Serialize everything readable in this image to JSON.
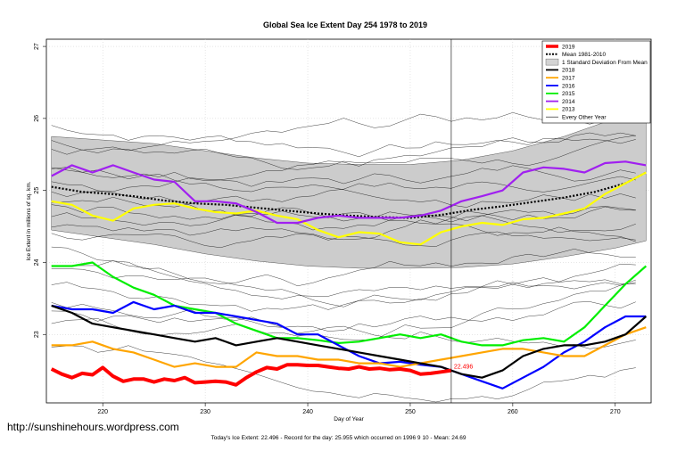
{
  "url_text": "http://sunshinehours.wordpress.com",
  "footer_text": "Today's Ice Extent: 22.496  - Record for the day: 25.955 which occurred on 1996 9 10  - Mean: 24.69",
  "chart_data": {
    "type": "line",
    "title": "Global Sea Ice Extent Day 254 1978 to 2019",
    "xlabel": "Day of Year",
    "ylabel": "Ice Extent in millions of sq. km.",
    "xlim": [
      214.5,
      273.5
    ],
    "ylim": [
      22.05,
      27.1
    ],
    "x_ticks": [
      220,
      230,
      240,
      250,
      260,
      270
    ],
    "y_ticks": [
      23,
      24,
      25,
      26,
      27
    ],
    "current_day": 254,
    "current_value_label": "22.496",
    "legend_position": "top-right",
    "legend": [
      {
        "label": "2019",
        "color": "#ff0000",
        "style": "thick"
      },
      {
        "label": "Mean 1981-2010",
        "color": "#000000",
        "style": "dotted"
      },
      {
        "label": "1 Standard Deviation From Mean",
        "color": "#d3d3d3",
        "style": "box"
      },
      {
        "label": "2018",
        "color": "#000000",
        "style": "solid"
      },
      {
        "label": "2017",
        "color": "#ffa500",
        "style": "solid"
      },
      {
        "label": "2016",
        "color": "#0000ff",
        "style": "solid"
      },
      {
        "label": "2015",
        "color": "#00ee00",
        "style": "solid"
      },
      {
        "label": "2014",
        "color": "#a020f0",
        "style": "solid"
      },
      {
        "label": "2013",
        "color": "#ffff00",
        "style": "solid"
      },
      {
        "label": "Every Other Year",
        "color": "#000000",
        "style": "thin"
      }
    ],
    "band": {
      "x": [
        215,
        220,
        225,
        230,
        235,
        240,
        245,
        250,
        255,
        260,
        265,
        270,
        273
      ],
      "upper": [
        25.75,
        25.7,
        25.65,
        25.55,
        25.45,
        25.38,
        25.36,
        25.36,
        25.42,
        25.55,
        25.75,
        26.0,
        26.2
      ],
      "lower": [
        24.45,
        24.35,
        24.25,
        24.12,
        24.02,
        23.95,
        23.92,
        23.92,
        23.93,
        23.98,
        24.08,
        24.2,
        24.3
      ]
    },
    "series": [
      {
        "name": "Mean 1981-2010",
        "color": "#000000",
        "width": 2.2,
        "dash": "2,2",
        "x": [
          215,
          218,
          220,
          223,
          226,
          229,
          232,
          235,
          238,
          241,
          244,
          247,
          250,
          253,
          256,
          259,
          262,
          265,
          268,
          271,
          273
        ],
        "y": [
          25.05,
          24.98,
          24.96,
          24.92,
          24.86,
          24.82,
          24.8,
          24.76,
          24.72,
          24.68,
          24.65,
          24.63,
          24.62,
          24.66,
          24.73,
          24.78,
          24.84,
          24.9,
          24.98,
          25.1,
          25.25
        ]
      },
      {
        "name": "2013",
        "color": "#ffff00",
        "width": 2.2,
        "x": [
          215,
          217,
          219,
          221,
          223,
          225,
          227,
          229,
          231,
          233,
          235,
          237,
          239,
          241,
          243,
          245,
          247,
          249,
          251,
          253,
          255,
          257,
          259,
          261,
          263,
          265,
          267,
          269,
          271,
          273
        ],
        "y": [
          24.85,
          24.8,
          24.65,
          24.58,
          24.75,
          24.8,
          24.82,
          24.75,
          24.7,
          24.68,
          24.72,
          24.65,
          24.6,
          24.45,
          24.35,
          24.42,
          24.4,
          24.28,
          24.25,
          24.42,
          24.5,
          24.55,
          24.52,
          24.6,
          24.62,
          24.68,
          24.75,
          24.95,
          25.1,
          25.25
        ]
      },
      {
        "name": "2014",
        "color": "#a020f0",
        "width": 2.2,
        "x": [
          215,
          217,
          219,
          221,
          223,
          225,
          227,
          229,
          231,
          233,
          235,
          237,
          239,
          241,
          243,
          245,
          247,
          249,
          251,
          253,
          255,
          257,
          259,
          261,
          263,
          265,
          267,
          269,
          271,
          273
        ],
        "y": [
          25.2,
          25.35,
          25.25,
          25.35,
          25.25,
          25.15,
          25.12,
          24.85,
          24.85,
          24.82,
          24.7,
          24.55,
          24.55,
          24.62,
          24.65,
          24.62,
          24.62,
          24.62,
          24.65,
          24.72,
          24.85,
          24.92,
          25.0,
          25.25,
          25.32,
          25.3,
          25.25,
          25.38,
          25.4,
          25.35
        ]
      },
      {
        "name": "2015",
        "color": "#00ee00",
        "width": 2.2,
        "x": [
          215,
          217,
          219,
          221,
          223,
          225,
          227,
          229,
          231,
          233,
          235,
          237,
          239,
          241,
          243,
          245,
          247,
          249,
          251,
          253,
          255,
          257,
          259,
          261,
          263,
          265,
          267,
          269,
          271,
          273
        ],
        "y": [
          23.95,
          23.95,
          24.0,
          23.8,
          23.65,
          23.55,
          23.4,
          23.35,
          23.3,
          23.15,
          23.05,
          22.95,
          22.95,
          22.92,
          22.88,
          22.9,
          22.95,
          23.0,
          22.95,
          23.0,
          22.9,
          22.85,
          22.85,
          22.92,
          22.95,
          22.9,
          23.1,
          23.4,
          23.7,
          23.95
        ]
      },
      {
        "name": "2016",
        "color": "#0000ff",
        "width": 2.2,
        "x": [
          215,
          217,
          219,
          221,
          223,
          225,
          227,
          229,
          231,
          233,
          235,
          237,
          239,
          241,
          243,
          245,
          247,
          249,
          251,
          253,
          255,
          257,
          259,
          261,
          263,
          265,
          267,
          269,
          271,
          273
        ],
        "y": [
          23.4,
          23.35,
          23.35,
          23.3,
          23.45,
          23.35,
          23.4,
          23.3,
          23.3,
          23.25,
          23.2,
          23.15,
          23.0,
          23.0,
          22.85,
          22.7,
          22.6,
          22.62,
          22.58,
          22.55,
          22.45,
          22.35,
          22.25,
          22.4,
          22.55,
          22.75,
          22.9,
          23.1,
          23.25,
          23.25
        ]
      },
      {
        "name": "2017",
        "color": "#ffa500",
        "width": 2.2,
        "x": [
          215,
          217,
          219,
          221,
          223,
          225,
          227,
          229,
          231,
          233,
          235,
          237,
          239,
          241,
          243,
          245,
          247,
          249,
          251,
          253,
          255,
          257,
          259,
          261,
          263,
          265,
          267,
          269,
          271,
          273
        ],
        "y": [
          22.85,
          22.85,
          22.9,
          22.8,
          22.75,
          22.65,
          22.55,
          22.6,
          22.55,
          22.55,
          22.75,
          22.7,
          22.7,
          22.65,
          22.65,
          22.6,
          22.6,
          22.55,
          22.6,
          22.65,
          22.7,
          22.75,
          22.8,
          22.8,
          22.75,
          22.7,
          22.7,
          22.85,
          23.0,
          23.1
        ]
      },
      {
        "name": "2018",
        "color": "#000000",
        "width": 2.2,
        "x": [
          215,
          217,
          219,
          221,
          223,
          225,
          227,
          229,
          231,
          233,
          235,
          237,
          239,
          241,
          243,
          245,
          247,
          249,
          251,
          253,
          255,
          257,
          259,
          261,
          263,
          265,
          267,
          269,
          271,
          273
        ],
        "y": [
          23.4,
          23.3,
          23.15,
          23.1,
          23.05,
          23.0,
          22.95,
          22.9,
          22.95,
          22.85,
          22.9,
          22.95,
          22.9,
          22.85,
          22.8,
          22.75,
          22.7,
          22.65,
          22.6,
          22.55,
          22.45,
          22.4,
          22.5,
          22.7,
          22.8,
          22.85,
          22.85,
          22.9,
          23.0,
          23.25
        ]
      },
      {
        "name": "2019",
        "color": "#ff0000",
        "width": 4,
        "x": [
          215,
          216,
          217,
          218,
          219,
          220,
          221,
          222,
          223,
          224,
          225,
          226,
          227,
          228,
          229,
          230,
          231,
          232,
          233,
          234,
          235,
          236,
          237,
          238,
          239,
          240,
          241,
          242,
          243,
          244,
          245,
          246,
          247,
          248,
          249,
          250,
          251,
          252,
          253,
          254
        ],
        "y": [
          22.52,
          22.45,
          22.4,
          22.46,
          22.44,
          22.54,
          22.42,
          22.35,
          22.38,
          22.38,
          22.34,
          22.38,
          22.36,
          22.4,
          22.33,
          22.34,
          22.35,
          22.34,
          22.3,
          22.4,
          22.48,
          22.54,
          22.52,
          22.58,
          22.58,
          22.57,
          22.57,
          22.55,
          22.53,
          22.52,
          22.55,
          22.52,
          22.53,
          22.51,
          22.52,
          22.5,
          22.45,
          22.46,
          22.48,
          22.5
        ]
      }
    ]
  }
}
